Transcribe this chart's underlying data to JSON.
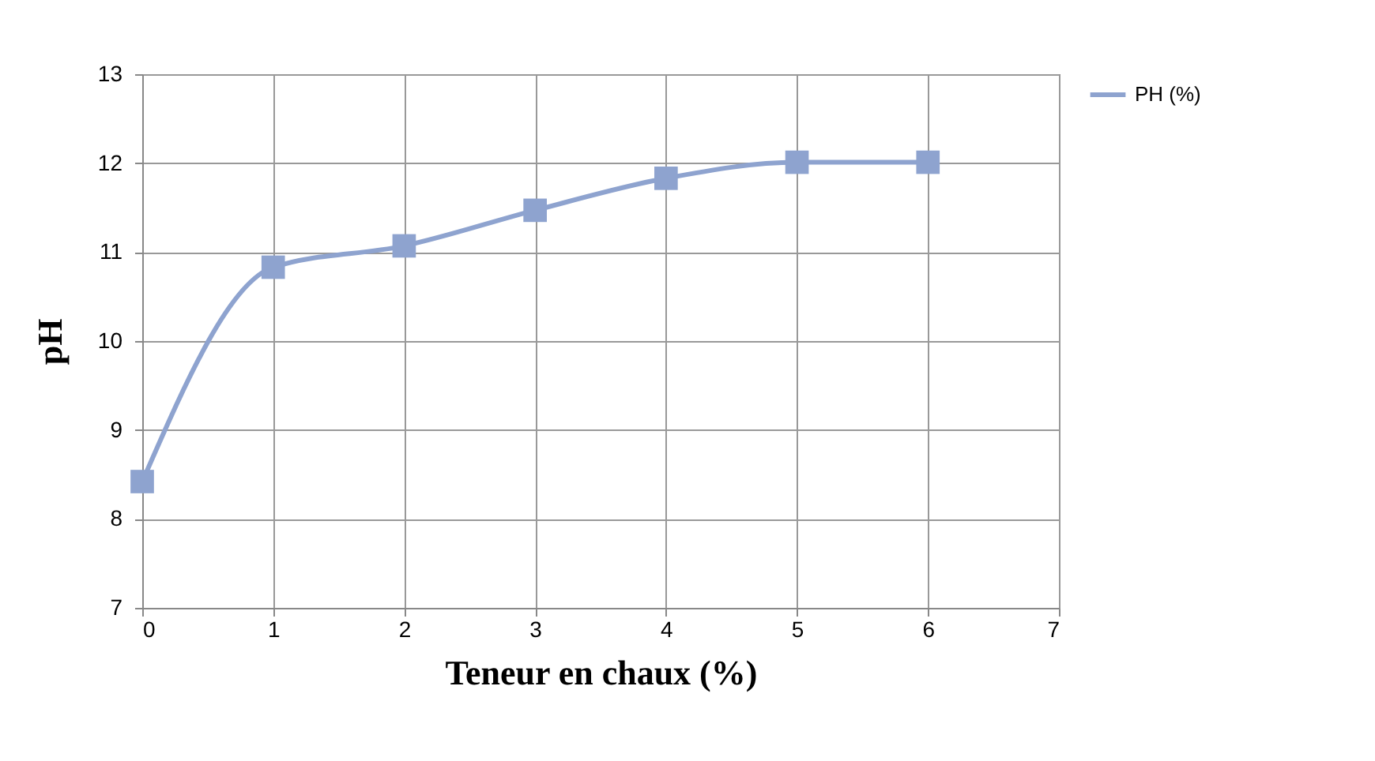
{
  "chart_data": {
    "type": "line",
    "xlabel": "Teneur en chaux (%)",
    "ylabel": "pH",
    "x": [
      0,
      1,
      2,
      3,
      4,
      5,
      6
    ],
    "series": [
      {
        "name": "PH (%)",
        "color": "#8ea3cf",
        "values": [
          8.42,
          10.83,
          11.07,
          11.47,
          11.83,
          12.01,
          12.01
        ]
      }
    ],
    "xlim": [
      0,
      7
    ],
    "xticks": [
      0,
      1,
      2,
      3,
      4,
      5,
      6,
      7
    ],
    "ylim": [
      7,
      13
    ],
    "yticks": [
      7,
      8,
      9,
      10,
      11,
      12,
      13
    ],
    "grid": true,
    "legend": "right",
    "marker": "square",
    "line_style": "solid"
  }
}
